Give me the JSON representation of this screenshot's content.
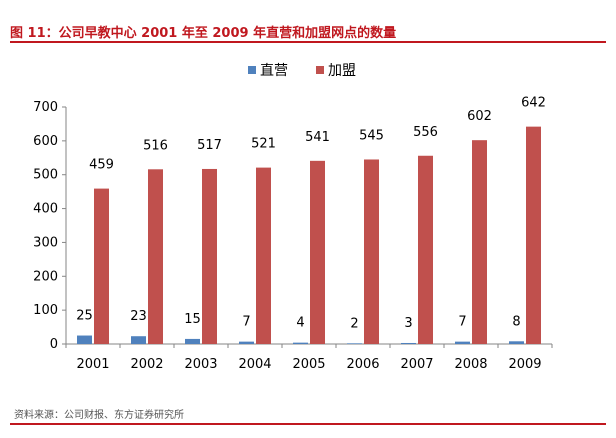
{
  "figure_title": "图 11：公司早教中心 2001 年至 2009 年直营和加盟网点的数量",
  "source_note": "资料来源：公司财报、东方证券研究所",
  "chart_data": {
    "type": "bar",
    "title": "",
    "xlabel": "",
    "ylabel": "",
    "categories": [
      "2001",
      "2002",
      "2003",
      "2004",
      "2005",
      "2006",
      "2007",
      "2008",
      "2009"
    ],
    "series": [
      {
        "name": "直营",
        "color": "#4f81bd",
        "values": [
          25,
          23,
          15,
          7,
          4,
          2,
          3,
          7,
          8
        ]
      },
      {
        "name": "加盟",
        "color": "#c0504d",
        "values": [
          459,
          516,
          517,
          521,
          541,
          545,
          556,
          602,
          642
        ]
      }
    ],
    "ylim": [
      0,
      700
    ],
    "yticks": [
      0,
      100,
      200,
      300,
      400,
      500,
      600,
      700
    ],
    "grid": false,
    "legend": "top-center",
    "data_labels": true
  }
}
